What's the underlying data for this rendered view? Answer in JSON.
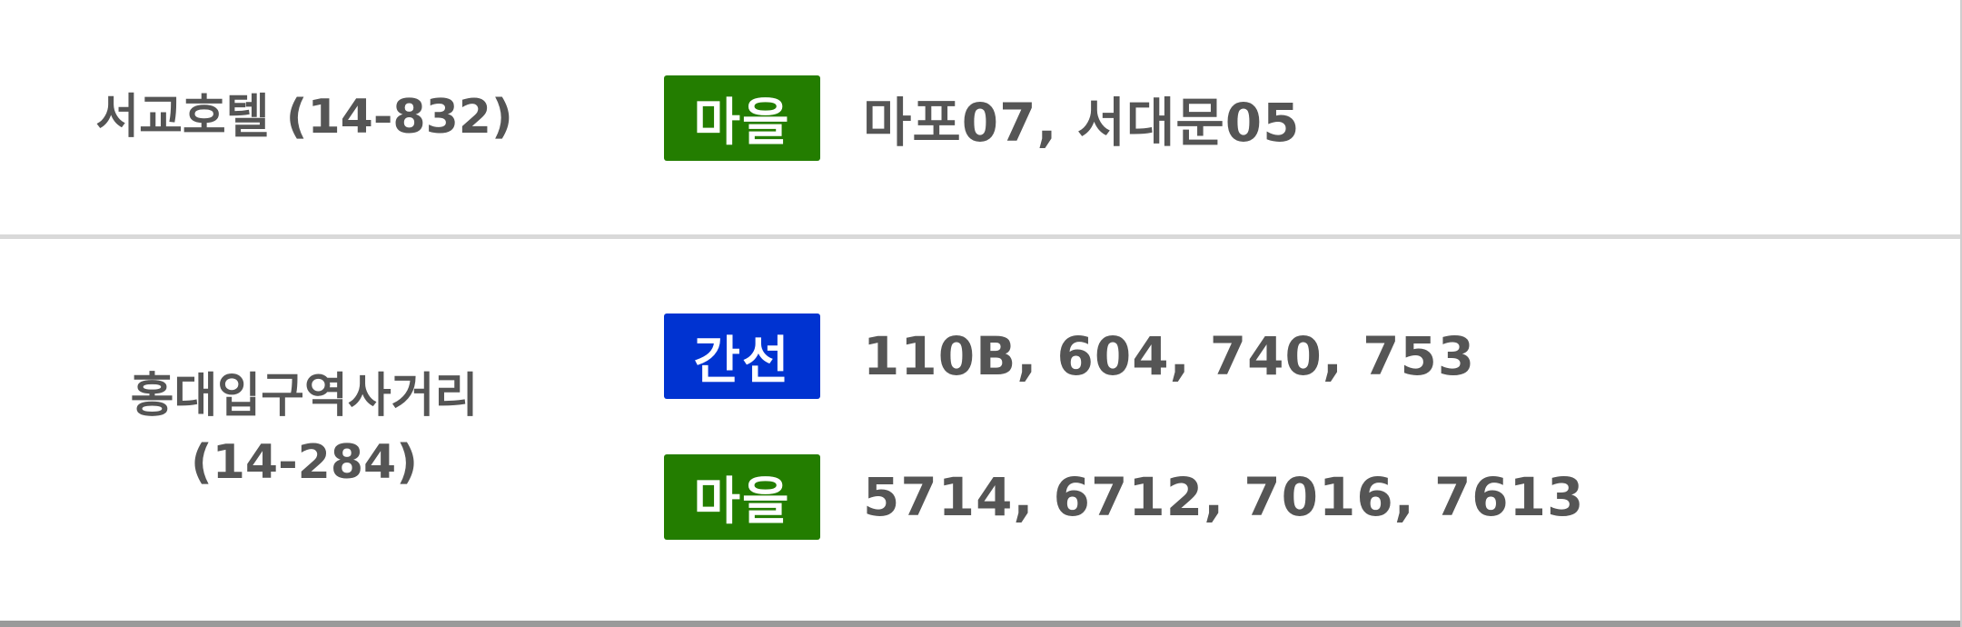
{
  "colors": {
    "village": "#237d00",
    "trunk": "#0033d1",
    "text": "#555555"
  },
  "rows": [
    {
      "stop_name": "서교호텔 (14-832)",
      "routes": [
        {
          "type_label": "마을",
          "numbers": "마포07, 서대문05"
        }
      ]
    },
    {
      "stop_name_line1": "홍대입구역사거리",
      "stop_name_line2": "(14-284)",
      "routes": [
        {
          "type_label": "간선",
          "numbers": "110B, 604, 740, 753"
        },
        {
          "type_label": "마을",
          "numbers": "5714, 6712, 7016, 7613"
        }
      ]
    }
  ]
}
